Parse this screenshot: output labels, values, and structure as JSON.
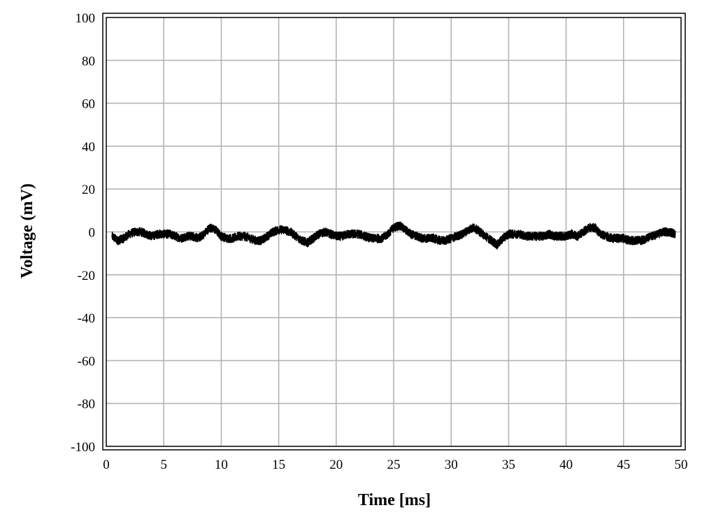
{
  "chart_data": {
    "type": "line",
    "title": "",
    "xlabel": "Time [ms]",
    "ylabel": "Voltage (mV)",
    "xlim": [
      0,
      50
    ],
    "ylim": [
      -100,
      100
    ],
    "x_ticks": [
      0,
      5,
      10,
      15,
      20,
      25,
      30,
      35,
      40,
      45,
      50
    ],
    "y_ticks": [
      -100,
      -80,
      -60,
      -40,
      -20,
      0,
      20,
      40,
      60,
      80,
      100
    ],
    "x_tick_labels": [
      "0",
      "5",
      "10",
      "15",
      "20",
      "25",
      "30",
      "35",
      "40",
      "45",
      "50"
    ],
    "y_tick_labels": [
      "-100",
      "-80",
      "-60",
      "-40",
      "-20",
      "0",
      "20",
      "40",
      "60",
      "80",
      "100"
    ],
    "grid": true,
    "legend": "none",
    "colors": {
      "line": "#000000",
      "grid": "#b4b4b4",
      "frame": "#000000",
      "background": "#ffffff"
    },
    "series": [
      {
        "color": "#000000",
        "noise_amplitude_mV": 2,
        "x": [
          0.5,
          1.0,
          1.5,
          2.0,
          2.5,
          3.0,
          3.5,
          4.0,
          4.5,
          5.0,
          5.5,
          6.0,
          6.5,
          7.0,
          7.5,
          8.0,
          8.5,
          9.0,
          9.5,
          10.0,
          10.5,
          11.0,
          11.5,
          12.0,
          12.5,
          13.0,
          13.5,
          14.0,
          14.5,
          15.0,
          15.5,
          16.0,
          16.5,
          17.0,
          17.5,
          18.0,
          18.5,
          19.0,
          19.5,
          20.0,
          20.5,
          21.0,
          21.5,
          22.0,
          22.5,
          23.0,
          23.5,
          24.0,
          24.5,
          25.0,
          25.5,
          26.0,
          26.5,
          27.0,
          27.5,
          28.0,
          28.5,
          29.0,
          29.5,
          30.0,
          30.5,
          31.0,
          31.5,
          32.0,
          32.5,
          33.0,
          33.5,
          34.0,
          34.5,
          35.0,
          35.5,
          36.0,
          36.5,
          37.0,
          37.5,
          38.0,
          38.5,
          39.0,
          39.5,
          40.0,
          40.5,
          41.0,
          41.5,
          42.0,
          42.5,
          43.0,
          43.5,
          44.0,
          44.5,
          45.0,
          45.5,
          46.0,
          46.5,
          47.0,
          47.5,
          48.0,
          48.5,
          49.0,
          49.5
        ],
        "values": [
          -2,
          -4,
          -3,
          -1,
          0,
          0,
          -1,
          -2,
          -1,
          -1,
          -1,
          -2,
          -3,
          -2,
          -2,
          -3,
          -1,
          2,
          1,
          -2,
          -3,
          -3,
          -2,
          -2,
          -3,
          -4,
          -4,
          -2,
          0,
          1,
          1,
          0,
          -2,
          -4,
          -5,
          -3,
          -1,
          0,
          -1,
          -2,
          -2,
          -1,
          -1,
          -1,
          -2,
          -3,
          -3,
          -3,
          -1,
          2,
          3,
          1,
          -1,
          -2,
          -3,
          -3,
          -3,
          -4,
          -4,
          -3,
          -2,
          -1,
          1,
          2,
          0,
          -2,
          -4,
          -6,
          -3,
          -1,
          -1,
          -1,
          -2,
          -2,
          -2,
          -2,
          -1,
          -2,
          -2,
          -2,
          -1,
          -2,
          0,
          2,
          2,
          -1,
          -2,
          -3,
          -3,
          -3,
          -4,
          -4,
          -4,
          -3,
          -2,
          -1,
          0,
          0,
          -1
        ]
      }
    ]
  }
}
